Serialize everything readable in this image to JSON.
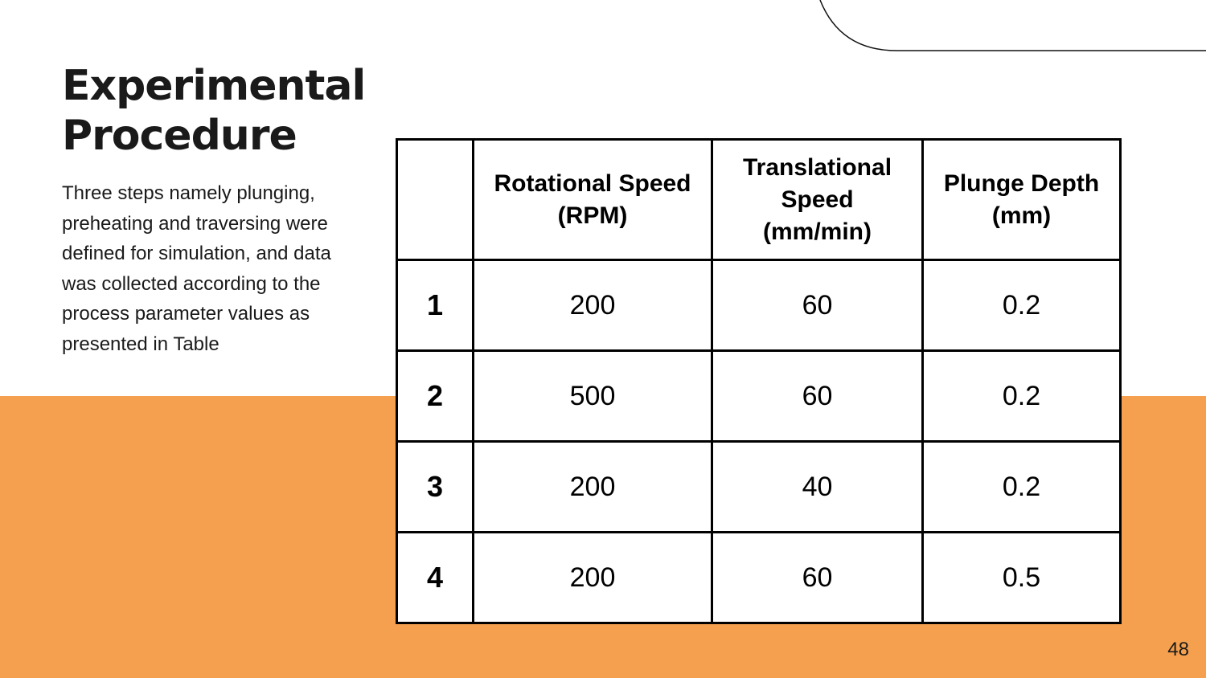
{
  "slide": {
    "title": "Experimental\nProcedure",
    "body": "Three steps namely plunging, preheating and traversing were defined for simulation, and data was collected according to the process parameter values as presented in Table",
    "page_number": "48"
  },
  "table": {
    "headers": [
      "",
      "Rotational Speed\n(RPM)",
      "Translational\nSpeed\n(mm/min)",
      "Plunge Depth\n(mm)"
    ],
    "rows": [
      [
        "1",
        "200",
        "60",
        "0.2"
      ],
      [
        "2",
        "500",
        "60",
        "0.2"
      ],
      [
        "3",
        "200",
        "40",
        "0.2"
      ],
      [
        "4",
        "200",
        "60",
        "0.5"
      ]
    ]
  },
  "colors": {
    "accent_band": "#F5A04E",
    "text": "#1a1a1a",
    "table_border": "#000000"
  }
}
